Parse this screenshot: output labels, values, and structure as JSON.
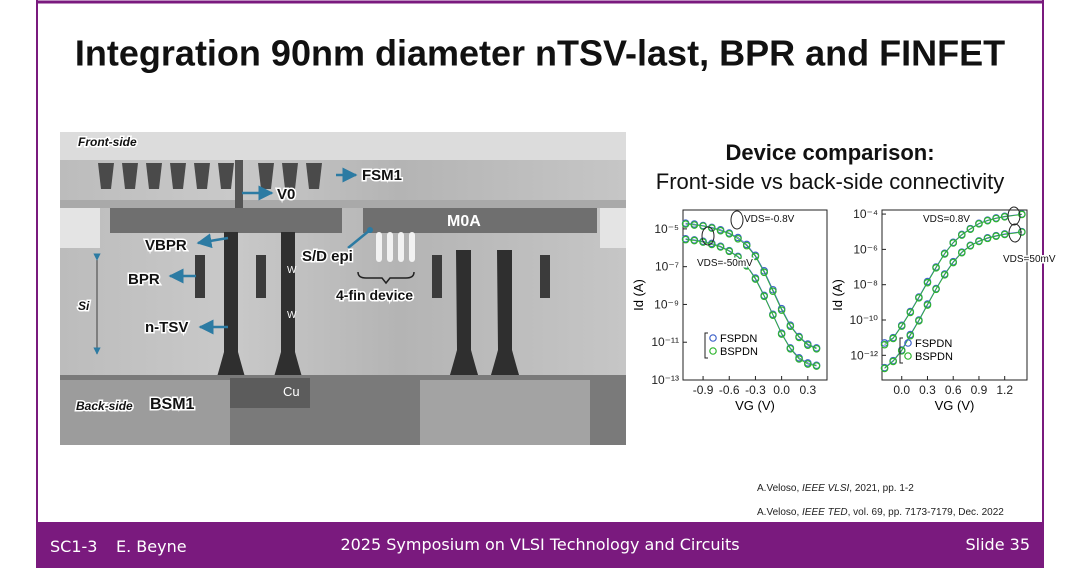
{
  "slide": {
    "title": "Integration 90nm diameter nTSV-last, BPR and FINFET",
    "subtitle": "Device comparison:",
    "subtitle2": "Front-side vs back-side connectivity",
    "image_labels": {
      "front_side": "Front-side",
      "fsm1": "FSM1",
      "v0": "V0",
      "m0a": "M0A",
      "vbpr": "VBPR",
      "sd_epi": "S/D epi",
      "bpr": "BPR",
      "four_fin": "4-fin device",
      "si": "Si",
      "ntsv": "n-TSV",
      "w1": "W",
      "w2": "W",
      "cu": "Cu",
      "back_side": "Back-side",
      "bsm1": "BSM1"
    },
    "references": [
      [
        "A.Veloso, ",
        "IEEE VLSI",
        ", 2021, pp. 1-2"
      ],
      [
        "A.Veloso, ",
        "IEEE TED",
        ", vol. 69, pp. 7173-7179, Dec. 2022"
      ]
    ],
    "footer": {
      "code": "SC1-3",
      "author": "E. Beyne",
      "event": "2025 Symposium on VLSI Technology and Circuits",
      "slide": "Slide 35"
    }
  },
  "chart_data": [
    {
      "type": "line",
      "x_label": "VG (V)",
      "y_label": "Id (A)",
      "log_y": true,
      "xlim": [
        -1.13,
        0.52
      ],
      "ylim": [
        1e-13,
        0.0001
      ],
      "xticks": [
        -0.9,
        -0.6,
        -0.3,
        {
          "value": 0,
          "label": "0.0"
        },
        0.3
      ],
      "yticks": [
        {
          "value": 1e-05,
          "label": "10⁻⁵"
        },
        {
          "value": 1e-07,
          "label": "10⁻⁷"
        },
        {
          "value": 1e-09,
          "label": "10⁻⁹"
        },
        {
          "value": 1e-11,
          "label": "10⁻¹¹"
        },
        {
          "value": 1e-13,
          "label": "10⁻¹³"
        }
      ],
      "annotations": [
        "VDS=-0.8V",
        "VDS=-50mV"
      ],
      "x": [
        -1.1,
        -1.0,
        -0.9,
        -0.8,
        -0.7,
        -0.6,
        -0.5,
        -0.4,
        -0.3,
        -0.2,
        -0.1,
        0.0,
        0.1,
        0.2,
        0.3,
        0.4
      ],
      "series": [
        {
          "name": "FSPDN",
          "color": "#3f63c9",
          "curves": [
            {
              "values": [
                2e-05,
                1.8e-05,
                1.5e-05,
                1.2e-05,
                9e-06,
                6e-06,
                3.5e-06,
                1.5e-06,
                4e-07,
                6e-08,
                6e-09,
                6e-10,
                8e-11,
                2e-11,
                8e-12,
                5e-12
              ]
            },
            {
              "values": [
                3e-06,
                2.6e-06,
                2.2e-06,
                1.7e-06,
                1.2e-06,
                7e-07,
                3.5e-07,
                1.2e-07,
                2.5e-08,
                3e-09,
                3e-10,
                3e-11,
                5e-12,
                1.5e-12,
                8e-13,
                6e-13
              ]
            }
          ]
        },
        {
          "name": "BSPDN",
          "color": "#2fb52f",
          "curves": [
            {
              "values": [
                1.8e-05,
                1.6e-05,
                1.4e-05,
                1.1e-05,
                8e-06,
                5.5e-06,
                3e-06,
                1.3e-06,
                3.5e-07,
                5e-08,
                5e-09,
                5e-10,
                7e-11,
                1.8e-11,
                7e-12,
                4.5e-12
              ]
            },
            {
              "values": [
                2.7e-06,
                2.4e-06,
                2e-06,
                1.5e-06,
                1.1e-06,
                6.5e-07,
                3.2e-07,
                1.1e-07,
                2.2e-08,
                2.7e-09,
                2.7e-10,
                2.7e-11,
                4.5e-12,
                1.3e-12,
                7e-13,
                5.5e-13
              ]
            }
          ]
        }
      ]
    },
    {
      "type": "line",
      "x_label": "VG (V)",
      "y_label": "Id (A)",
      "log_y": true,
      "xlim": [
        -0.23,
        1.46
      ],
      "ylim": [
        4e-14,
        0.00017
      ],
      "xticks": [
        {
          "value": 0,
          "label": "0.0"
        },
        0.3,
        0.6,
        0.9,
        1.2
      ],
      "yticks": [
        {
          "value": 0.0001,
          "label": "10⁻⁴"
        },
        {
          "value": 1e-06,
          "label": "10⁻⁶"
        },
        {
          "value": 1e-08,
          "label": "10⁻⁸"
        },
        {
          "value": 1e-10,
          "label": "10⁻¹⁰"
        },
        {
          "value": 1e-12,
          "label": "10⁻¹²"
        }
      ],
      "annotations": [
        "VDS=0.8V",
        "VDS=50mV"
      ],
      "x": [
        -0.2,
        -0.1,
        0.0,
        0.1,
        0.2,
        0.3,
        0.4,
        0.5,
        0.6,
        0.7,
        0.8,
        0.9,
        1.0,
        1.1,
        1.2,
        1.4
      ],
      "series": [
        {
          "name": "FSPDN",
          "color": "#3f63c9",
          "curves": [
            {
              "values": [
                5e-12,
                1e-11,
                5e-11,
                3e-10,
                2e-09,
                1.5e-08,
                1e-07,
                6e-07,
                2.5e-06,
                7e-06,
                1.5e-05,
                3e-05,
                4.5e-05,
                6e-05,
                7.5e-05,
                0.0001
              ]
            },
            {
              "values": [
                2e-13,
                5e-13,
                2e-12,
                1.5e-11,
                1e-10,
                8e-10,
                6e-09,
                4e-08,
                2e-07,
                7e-07,
                1.7e-06,
                3e-06,
                4.5e-06,
                6e-06,
                7.5e-06,
                1e-05
              ]
            }
          ]
        },
        {
          "name": "BSPDN",
          "color": "#2fb52f",
          "curves": [
            {
              "values": [
                4e-12,
                9e-12,
                4.5e-11,
                2.7e-10,
                1.8e-09,
                1.3e-08,
                9e-08,
                5.5e-07,
                2.3e-06,
                6.5e-06,
                1.4e-05,
                2.8e-05,
                4.2e-05,
                5.6e-05,
                7e-05,
                9.5e-05
              ]
            },
            {
              "values": [
                1.8e-13,
                4.5e-13,
                1.8e-12,
                1.3e-11,
                9e-11,
                7e-10,
                5.5e-09,
                3.6e-08,
                1.8e-07,
                6.5e-07,
                1.6e-06,
                2.8e-06,
                4.2e-06,
                5.6e-06,
                7e-06,
                9.5e-06
              ]
            }
          ]
        }
      ]
    }
  ]
}
